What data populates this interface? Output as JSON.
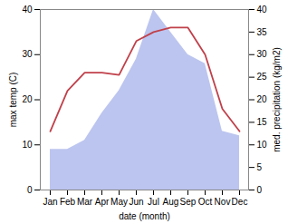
{
  "chart_data": {
    "type": "line",
    "xlabel": "date (month)",
    "ylabel": "max temp (C)",
    "y2label": "med. precipitation (kg/m2)",
    "categories": [
      "Jan",
      "Feb",
      "Mar",
      "Apr",
      "May",
      "Jun",
      "Jul",
      "Aug",
      "Sep",
      "Oct",
      "Nov",
      "Dec"
    ],
    "series": [
      {
        "type": "area",
        "axis": "y2",
        "color": "#bcc5ef",
        "values": [
          9,
          9,
          11,
          17,
          22,
          29,
          40,
          35,
          30,
          28,
          13,
          12
        ]
      },
      {
        "type": "line",
        "color": "#c0404a",
        "values": [
          13,
          22,
          26,
          26,
          25.5,
          33,
          35,
          36,
          36,
          30,
          18,
          13
        ]
      }
    ],
    "ylim": [
      0,
      40
    ],
    "yticks": [
      0,
      10,
      20,
      30,
      40
    ],
    "y2lim": [
      0,
      40
    ],
    "y2ticks": [
      0,
      5,
      10,
      15,
      20,
      25,
      30,
      35,
      40
    ]
  }
}
